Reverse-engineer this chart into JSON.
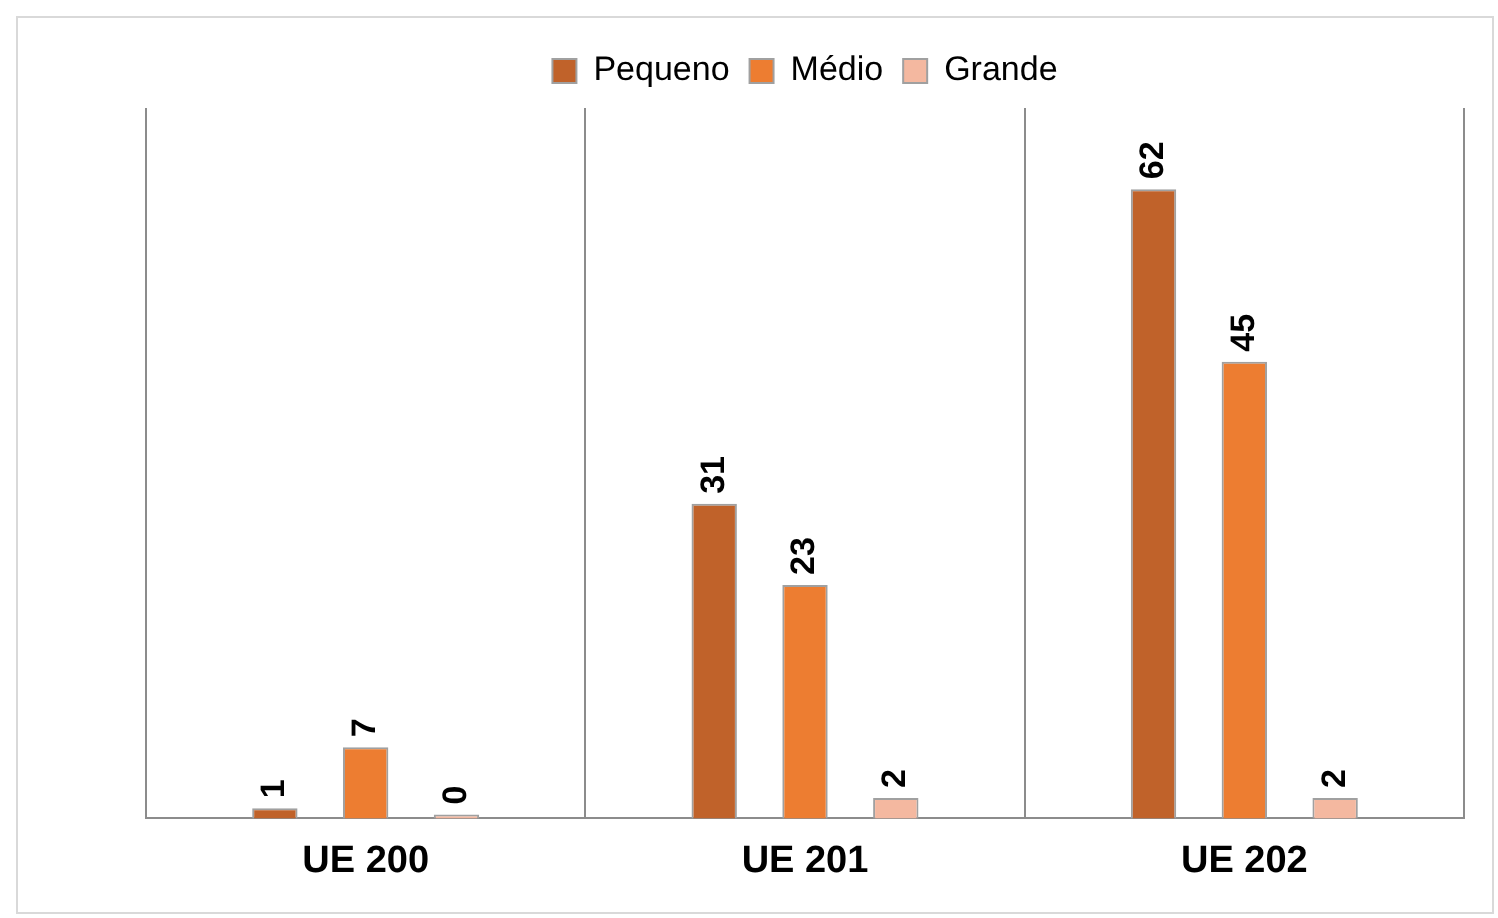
{
  "chart_data": {
    "type": "bar",
    "categories": [
      "UE 200",
      "UE 201",
      "UE 202"
    ],
    "series": [
      {
        "name": "Pequeno",
        "color": "#c0622a",
        "values": [
          1,
          31,
          62
        ]
      },
      {
        "name": "Médio",
        "color": "#ed7d31",
        "values": [
          7,
          23,
          45
        ]
      },
      {
        "name": "Grande",
        "color": "#f4b8a0",
        "values": [
          0,
          2,
          2
        ]
      }
    ],
    "data_labels": true,
    "grid": "x",
    "legend": "top"
  }
}
